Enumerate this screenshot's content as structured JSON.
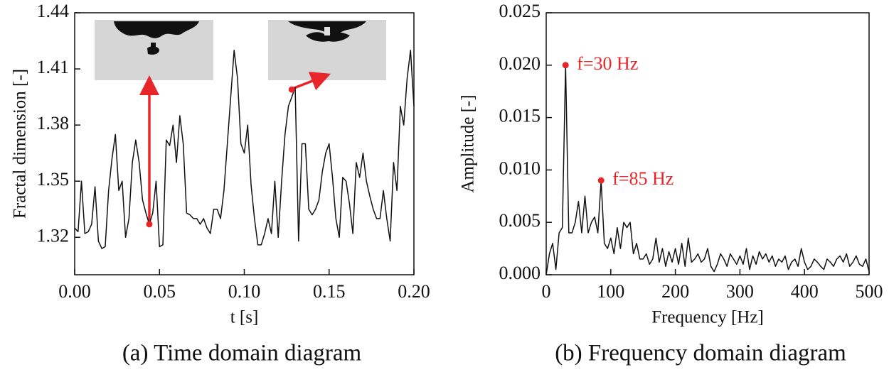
{
  "chart_data": [
    {
      "type": "line",
      "caption": "(a) Time domain diagram",
      "xlabel": "t [s]",
      "ylabel": "Fractal dimension [-]",
      "color": "#111111",
      "marker_color": "#e8262a",
      "xlim": [
        0,
        0.2
      ],
      "ylim": [
        1.3,
        1.44
      ],
      "xticks": [
        {
          "value": 0,
          "label": "0.00"
        },
        0.05,
        {
          "value": 0.1,
          "label": "0.10"
        },
        0.15,
        {
          "value": 0.2,
          "label": "0.20"
        }
      ],
      "yticks": [
        1.32,
        1.35,
        1.38,
        1.41,
        1.44
      ],
      "x": [
        0,
        0.002,
        0.004,
        0.006,
        0.008,
        0.01,
        0.012,
        0.014,
        0.016,
        0.018,
        0.02,
        0.022,
        0.024,
        0.026,
        0.028,
        0.03,
        0.032,
        0.034,
        0.036,
        0.038,
        0.04,
        0.042,
        0.044,
        0.046,
        0.048,
        0.05,
        0.052,
        0.054,
        0.056,
        0.058,
        0.06,
        0.062,
        0.064,
        0.066,
        0.068,
        0.07,
        0.072,
        0.074,
        0.076,
        0.078,
        0.08,
        0.082,
        0.084,
        0.086,
        0.088,
        0.09,
        0.092,
        0.094,
        0.096,
        0.098,
        0.1,
        0.102,
        0.104,
        0.106,
        0.108,
        0.11,
        0.112,
        0.114,
        0.116,
        0.118,
        0.12,
        0.122,
        0.124,
        0.126,
        0.128,
        0.13,
        0.132,
        0.134,
        0.136,
        0.138,
        0.14,
        0.142,
        0.144,
        0.146,
        0.148,
        0.15,
        0.152,
        0.154,
        0.156,
        0.158,
        0.16,
        0.162,
        0.164,
        0.166,
        0.168,
        0.17,
        0.172,
        0.174,
        0.176,
        0.178,
        0.18,
        0.182,
        0.184,
        0.186,
        0.188,
        0.19,
        0.192,
        0.194,
        0.196,
        0.198,
        0.2
      ],
      "values": [
        1.325,
        1.323,
        1.35,
        1.322,
        1.323,
        1.327,
        1.347,
        1.318,
        1.314,
        1.315,
        1.345,
        1.362,
        1.375,
        1.345,
        1.35,
        1.32,
        1.33,
        1.36,
        1.372,
        1.36,
        1.34,
        1.333,
        1.327,
        1.333,
        1.35,
        1.315,
        1.316,
        1.372,
        1.369,
        1.38,
        1.36,
        1.385,
        1.37,
        1.333,
        1.332,
        1.33,
        1.33,
        1.327,
        1.33,
        1.325,
        1.322,
        1.335,
        1.335,
        1.33,
        1.345,
        1.37,
        1.395,
        1.42,
        1.405,
        1.37,
        1.365,
        1.38,
        1.348,
        1.33,
        1.316,
        1.316,
        1.322,
        1.33,
        1.322,
        1.35,
        1.32,
        1.35,
        1.375,
        1.39,
        1.395,
        1.4,
        1.318,
        1.37,
        1.37,
        1.335,
        1.332,
        1.335,
        1.34,
        1.355,
        1.365,
        1.37,
        1.352,
        1.33,
        1.32,
        1.352,
        1.35,
        1.338,
        1.322,
        1.36,
        1.352,
        1.365,
        1.35,
        1.342,
        1.335,
        1.33,
        1.33,
        1.345,
        1.33,
        1.318,
        1.36,
        1.345,
        1.39,
        1.38,
        1.405,
        1.42,
        1.39
      ],
      "markers": [
        {
          "x": 0.044,
          "y": 1.327
        },
        {
          "x": 0.128,
          "y": 1.399
        }
      ]
    },
    {
      "type": "line",
      "caption": "(b) Frequency domain diagram",
      "xlabel": "Frequency [Hz]",
      "ylabel": "Amplitude [-]",
      "color": "#111111",
      "marker_color": "#e8262a",
      "xlim": [
        0,
        500
      ],
      "ylim": [
        0,
        0.025
      ],
      "xticks": [
        0,
        100,
        200,
        300,
        400,
        500
      ],
      "yticks": [
        {
          "value": 0,
          "label": "0.000"
        },
        0.005,
        {
          "value": 0.01,
          "label": "0.010"
        },
        0.015,
        {
          "value": 0.02,
          "label": "0.020"
        },
        0.025
      ],
      "x": [
        0,
        5,
        10,
        15,
        20,
        25,
        30,
        35,
        40,
        45,
        50,
        55,
        60,
        65,
        70,
        75,
        80,
        85,
        90,
        95,
        100,
        105,
        110,
        115,
        120,
        125,
        130,
        135,
        140,
        145,
        150,
        155,
        160,
        165,
        170,
        175,
        180,
        185,
        190,
        195,
        200,
        205,
        210,
        215,
        220,
        225,
        230,
        235,
        240,
        245,
        250,
        255,
        260,
        265,
        270,
        275,
        280,
        285,
        290,
        295,
        300,
        305,
        310,
        315,
        320,
        325,
        330,
        335,
        340,
        345,
        350,
        355,
        360,
        365,
        370,
        375,
        380,
        385,
        390,
        395,
        400,
        405,
        410,
        415,
        420,
        425,
        430,
        435,
        440,
        445,
        450,
        455,
        460,
        465,
        470,
        475,
        480,
        485,
        490,
        495,
        500
      ],
      "values": [
        0,
        0.002,
        0.003,
        0.0005,
        0.004,
        0.0045,
        0.02,
        0.004,
        0.004,
        0.005,
        0.007,
        0.004,
        0.0075,
        0.004,
        0.005,
        0.0055,
        0.004,
        0.009,
        0.003,
        0.0025,
        0.0035,
        0.002,
        0.0045,
        0.0025,
        0.005,
        0.0045,
        0.005,
        0.002,
        0.003,
        0.0015,
        0.0015,
        0.002,
        0.001,
        0.0015,
        0.0035,
        0.0012,
        0.0025,
        0.0008,
        0.0022,
        0.0012,
        0.0025,
        0.001,
        0.003,
        0.0008,
        0.0035,
        0.0012,
        0.0015,
        0.002,
        0.0012,
        0.0015,
        0.0025,
        0.0008,
        0.0003,
        0.001,
        0.002,
        0.0015,
        0.0008,
        0.002,
        0.0015,
        0.001,
        0.0018,
        0.001,
        0.0025,
        0.0005,
        0.0018,
        0.001,
        0.0022,
        0.0015,
        0.002,
        0.0012,
        0.0018,
        0.0008,
        0.0015,
        0.0012,
        0.0018,
        0.0005,
        0.0012,
        0.0015,
        0.0008,
        0.0025,
        0.0012,
        0.0005,
        0.0008,
        0.0015,
        0.0012,
        0.0008,
        0.0005,
        0.0015,
        0.0012,
        0.0008,
        0.0015,
        0.0018,
        0.0012,
        0.002,
        0.0008,
        0.0012,
        0.0018,
        0.001,
        0.0008,
        0.0015,
        0.0003
      ],
      "annotations": [
        {
          "text": "f=30 Hz",
          "x": 30,
          "y": 0.02
        },
        {
          "text": "f=85 Hz",
          "x": 85,
          "y": 0.009
        }
      ]
    }
  ]
}
